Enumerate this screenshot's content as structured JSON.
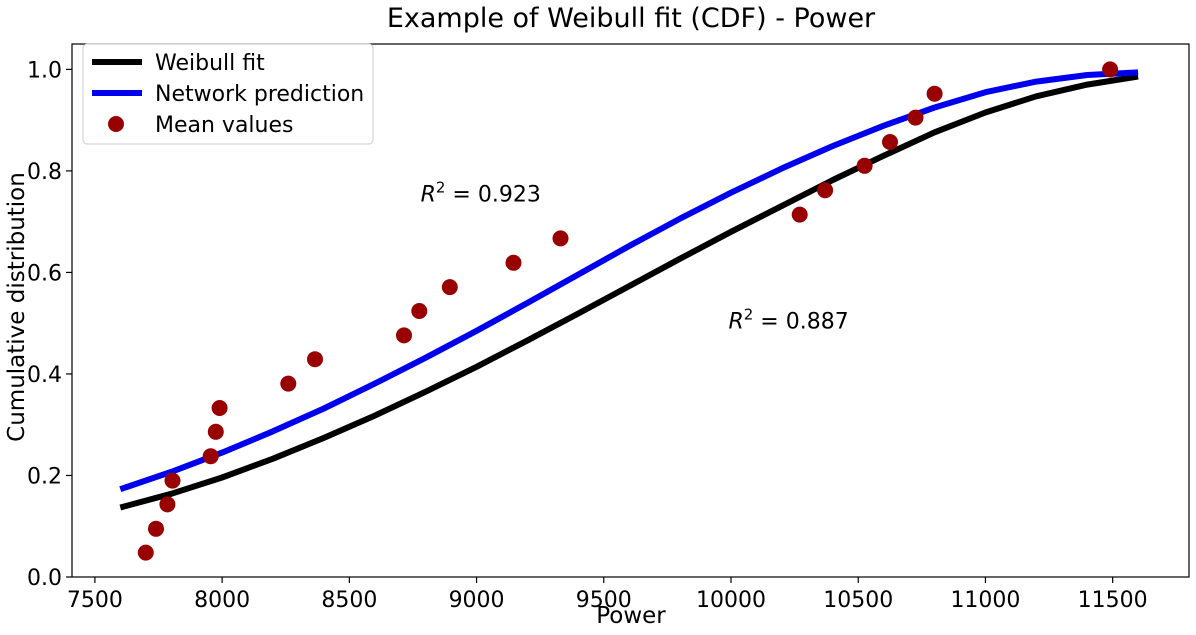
{
  "chart_data": {
    "type": "line",
    "title": "Example of Weibull fit (CDF) - Power",
    "xlabel": "Power",
    "ylabel": "Cumulative distribution",
    "xlim": [
      7410,
      11800
    ],
    "ylim": [
      0.0,
      1.05
    ],
    "x_ticks": [
      7500,
      8000,
      8500,
      9000,
      9500,
      10000,
      10500,
      11000,
      11500
    ],
    "y_ticks": [
      0.0,
      0.2,
      0.4,
      0.6,
      0.8,
      1.0
    ],
    "x_tick_labels": [
      "7500",
      "8000",
      "8500",
      "9000",
      "9500",
      "10000",
      "10500",
      "11000",
      "11500"
    ],
    "y_tick_labels": [
      "0.0",
      "0.2",
      "0.4",
      "0.6",
      "0.8",
      "1.0"
    ],
    "grid": false,
    "legend_position": "top-left",
    "series": [
      {
        "name": "Weibull fit",
        "kind": "line",
        "color": "#000000",
        "x": [
          7600,
          7800,
          8000,
          8200,
          8400,
          8600,
          8800,
          9000,
          9200,
          9400,
          9600,
          9800,
          10000,
          10200,
          10400,
          10600,
          10800,
          11000,
          11200,
          11400,
          11600
        ],
        "y": [
          0.137,
          0.164,
          0.196,
          0.233,
          0.274,
          0.318,
          0.365,
          0.414,
          0.466,
          0.519,
          0.573,
          0.627,
          0.68,
          0.731,
          0.782,
          0.83,
          0.876,
          0.915,
          0.947,
          0.97,
          0.986
        ]
      },
      {
        "name": "Network prediction",
        "kind": "line",
        "color": "#0000ee",
        "x": [
          7600,
          7800,
          8000,
          8200,
          8400,
          8600,
          8800,
          9000,
          9200,
          9400,
          9600,
          9800,
          10000,
          10200,
          10400,
          10600,
          10800,
          11000,
          11200,
          11400,
          11600
        ],
        "y": [
          0.173,
          0.207,
          0.245,
          0.287,
          0.332,
          0.381,
          0.432,
          0.485,
          0.54,
          0.596,
          0.652,
          0.706,
          0.757,
          0.805,
          0.849,
          0.889,
          0.925,
          0.955,
          0.976,
          0.989,
          0.994
        ]
      },
      {
        "name": "Mean values",
        "kind": "scatter",
        "color": "#990000",
        "x": [
          7700,
          7740,
          7785,
          7805,
          7955,
          7975,
          7990,
          8260,
          8365,
          8715,
          8775,
          8895,
          9145,
          9330,
          10270,
          10370,
          10525,
          10625,
          10725,
          10800,
          11490
        ],
        "y": [
          0.048,
          0.095,
          0.143,
          0.19,
          0.238,
          0.286,
          0.333,
          0.381,
          0.429,
          0.476,
          0.524,
          0.571,
          0.619,
          0.667,
          0.714,
          0.762,
          0.81,
          0.857,
          0.905,
          0.952,
          1.0
        ]
      }
    ],
    "annotations": [
      {
        "label": "R",
        "exp": "2",
        "text": " = 0.923",
        "x": 8780,
        "y": 0.755
      },
      {
        "label": "R",
        "exp": "2",
        "text": " = 0.887",
        "x": 9990,
        "y": 0.505
      }
    ]
  }
}
